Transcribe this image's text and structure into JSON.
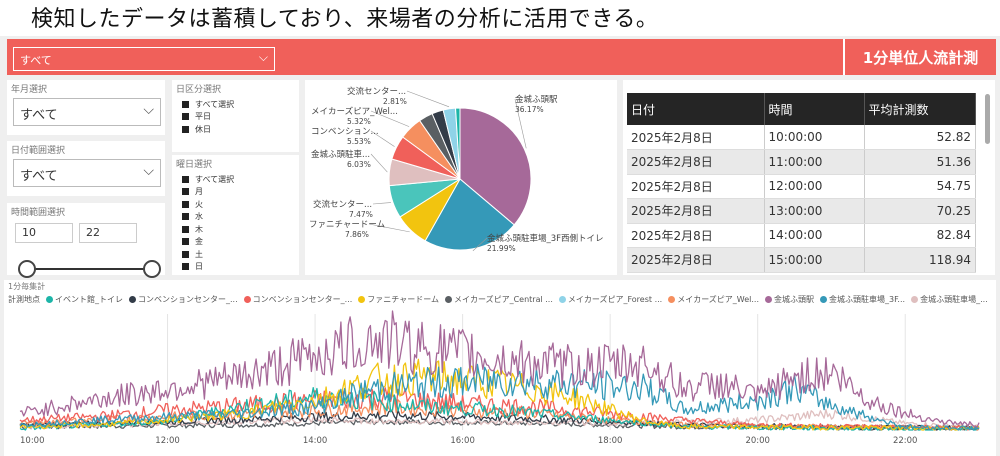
{
  "caption": "検知したデータは蓄積しており、来場者の分析に活用できる。",
  "topbar": {
    "select_value": "すべて",
    "title": "1分単位人流計測",
    "color": "#f0605a"
  },
  "filters": {
    "month": {
      "label": "年月選択",
      "value": "すべて"
    },
    "date_range": {
      "label": "日付範囲選択",
      "value": "すべて"
    },
    "time_range": {
      "label": "時間範囲選択",
      "from": "10",
      "to": "22"
    },
    "day_type": {
      "label": "日区分選択",
      "items": [
        "すべて選択",
        "平日",
        "休日"
      ]
    },
    "weekday": {
      "label": "曜日選択",
      "items": [
        "すべて選択",
        "月",
        "火",
        "水",
        "木",
        "金",
        "土",
        "日"
      ]
    }
  },
  "table": {
    "headers": [
      "日付",
      "時間",
      "平均計測数"
    ],
    "rows": [
      [
        "2025年2月8日",
        "10:00:00",
        "52.82"
      ],
      [
        "2025年2月8日",
        "11:00:00",
        "51.36"
      ],
      [
        "2025年2月8日",
        "12:00:00",
        "54.75"
      ],
      [
        "2025年2月8日",
        "13:00:00",
        "70.25"
      ],
      [
        "2025年2月8日",
        "14:00:00",
        "82.84"
      ],
      [
        "2025年2月8日",
        "15:00:00",
        "118.94"
      ]
    ]
  },
  "line_chart": {
    "title": "1分毎集計",
    "legend_title": "計測地点",
    "legend": [
      {
        "name": "イベント館_トイレ",
        "color": "#1db5a8"
      },
      {
        "name": "コンベンションセンター_...",
        "color": "#333c48"
      },
      {
        "name": "コンベンションセンター_...",
        "color": "#f0605a"
      },
      {
        "name": "ファニチャードーム",
        "color": "#f2c40f"
      },
      {
        "name": "メイカーズピア_Central ...",
        "color": "#5a5f63"
      },
      {
        "name": "メイカーズピア_Forest ...",
        "color": "#8fd3e8"
      },
      {
        "name": "メイカーズピア_Wel...",
        "color": "#f58f5f"
      },
      {
        "name": "金城ふ頭駅",
        "color": "#a66999"
      },
      {
        "name": "金城ふ頭駐車場_3F...",
        "color": "#3599b8"
      },
      {
        "name": "金城ふ頭駐車場_...",
        "color": "#dfbfbf"
      }
    ],
    "x_ticks": [
      "10:00",
      "12:00",
      "14:00",
      "16:00",
      "18:00",
      "20:00",
      "22:00"
    ]
  },
  "chart_data": [
    {
      "type": "pie",
      "slices": [
        {
          "label": "金城ふ頭駅",
          "value": 36.17,
          "pct": "36.17%",
          "color": "#a66999"
        },
        {
          "label": "金城ふ頭駐車場_3F西側トイレ",
          "value": 21.99,
          "pct": "21.99%",
          "color": "#3599b8"
        },
        {
          "label": "ファニチャードーム",
          "value": 7.86,
          "pct": "7.86%",
          "color": "#f2c40f"
        },
        {
          "label": "交流センター...",
          "value": 7.47,
          "pct": "7.47%",
          "color": "#4ac5bb"
        },
        {
          "label": "金城ふ頭駐車...",
          "value": 6.03,
          "pct": "6.03%",
          "color": "#dfbfbf"
        },
        {
          "label": "コンベンション...",
          "value": 5.53,
          "pct": "5.53%",
          "color": "#f0605a"
        },
        {
          "label": "メイカーズピア_Wel...",
          "value": 5.32,
          "pct": "5.32%",
          "color": "#f58f5f"
        },
        {
          "label": "",
          "value": 3.2,
          "pct": "",
          "color": "#5a5f63"
        },
        {
          "label": "",
          "value": 2.6,
          "pct": "",
          "color": "#333c48"
        },
        {
          "label": "交流センター...",
          "value": 2.81,
          "pct": "2.81%",
          "color": "#8fd3e8"
        },
        {
          "label": "",
          "value": 1.0,
          "pct": "",
          "color": "#1db5a8"
        }
      ]
    },
    {
      "type": "line",
      "x_range": [
        "10:00",
        "23:00"
      ],
      "series": [
        {
          "name": "金城ふ頭駅",
          "color": "#a66999",
          "anchors": [
            [
              10,
              10
            ],
            [
              11,
              18
            ],
            [
              12,
              25
            ],
            [
              13,
              32
            ],
            [
              14,
              45
            ],
            [
              14.8,
              55
            ],
            [
              15.5,
              50
            ],
            [
              16.5,
              42
            ],
            [
              17.5,
              38
            ],
            [
              18.5,
              40
            ],
            [
              19,
              25
            ],
            [
              19.5,
              28
            ],
            [
              20,
              20
            ],
            [
              20.5,
              32
            ],
            [
              21,
              35
            ],
            [
              21.5,
              18
            ],
            [
              22,
              10
            ],
            [
              22.5,
              5
            ],
            [
              23,
              3
            ]
          ]
        },
        {
          "name": "金城ふ頭駐車場_3F...",
          "color": "#3599b8",
          "anchors": [
            [
              10,
              3
            ],
            [
              11,
              6
            ],
            [
              12,
              8
            ],
            [
              13,
              10
            ],
            [
              14,
              14
            ],
            [
              14.8,
              25
            ],
            [
              15.5,
              28
            ],
            [
              16.5,
              30
            ],
            [
              17.5,
              28
            ],
            [
              18.5,
              25
            ],
            [
              19,
              12
            ],
            [
              20,
              18
            ],
            [
              20.5,
              25
            ],
            [
              21,
              15
            ],
            [
              21.5,
              8
            ],
            [
              22,
              2
            ],
            [
              23,
              1
            ]
          ]
        },
        {
          "name": "ファニチャードーム",
          "color": "#f2c40f",
          "anchors": [
            [
              10,
              2
            ],
            [
              11,
              3
            ],
            [
              12,
              6
            ],
            [
              13,
              10
            ],
            [
              14,
              18
            ],
            [
              14.8,
              30
            ],
            [
              15.5,
              32
            ],
            [
              16.5,
              28
            ],
            [
              17.5,
              20
            ],
            [
              18,
              12
            ],
            [
              18.5,
              5
            ],
            [
              19,
              2
            ],
            [
              23,
              1
            ]
          ]
        },
        {
          "name": "イベント館_トイレ",
          "color": "#1db5a8",
          "anchors": [
            [
              10,
              1
            ],
            [
              12,
              5
            ],
            [
              13,
              14
            ],
            [
              14,
              20
            ],
            [
              14.8,
              18
            ],
            [
              15.5,
              14
            ],
            [
              16.5,
              12
            ],
            [
              17.5,
              8
            ],
            [
              18.5,
              4
            ],
            [
              19,
              2
            ],
            [
              23,
              0
            ]
          ]
        },
        {
          "name": "コンベンションセンター_...",
          "color": "#f0605a",
          "anchors": [
            [
              10,
              6
            ],
            [
              11,
              8
            ],
            [
              12,
              12
            ],
            [
              13,
              15
            ],
            [
              14,
              18
            ],
            [
              15,
              20
            ],
            [
              16,
              16
            ],
            [
              17,
              14
            ],
            [
              18,
              10
            ],
            [
              19,
              6
            ],
            [
              20,
              3
            ],
            [
              23,
              1
            ]
          ]
        },
        {
          "name": "メイカーズピア_Wel...",
          "color": "#f58f5f",
          "anchors": [
            [
              10,
              4
            ],
            [
              12,
              8
            ],
            [
              14,
              12
            ],
            [
              15,
              14
            ],
            [
              16,
              12
            ],
            [
              17,
              10
            ],
            [
              18,
              6
            ],
            [
              19,
              3
            ],
            [
              23,
              1
            ]
          ]
        },
        {
          "name": "コンベンションセンター_...",
          "color": "#333c48",
          "anchors": [
            [
              10,
              3
            ],
            [
              12,
              5
            ],
            [
              14,
              8
            ],
            [
              15,
              9
            ],
            [
              16,
              8
            ],
            [
              17,
              7
            ],
            [
              18,
              5
            ],
            [
              19,
              3
            ],
            [
              23,
              1
            ]
          ]
        },
        {
          "name": "金城ふ頭駐車場_...",
          "color": "#dfbfbf",
          "anchors": [
            [
              10,
              2
            ],
            [
              12,
              4
            ],
            [
              14,
              6
            ],
            [
              16,
              5
            ],
            [
              18,
              4
            ],
            [
              20,
              6
            ],
            [
              21,
              10
            ],
            [
              22,
              4
            ],
            [
              23,
              2
            ]
          ]
        },
        {
          "name": "メイカーズピア_Central ...",
          "color": "#5a5f63",
          "anchors": [
            [
              10,
              2
            ],
            [
              13,
              3
            ],
            [
              15,
              5
            ],
            [
              17,
              4
            ],
            [
              19,
              2
            ],
            [
              23,
              1
            ]
          ]
        }
      ],
      "y_max": 70
    }
  ]
}
